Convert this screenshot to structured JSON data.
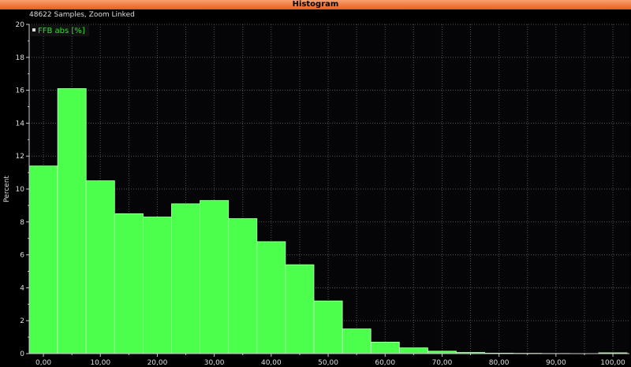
{
  "window": {
    "title": "Histogram"
  },
  "subtitle": "48622 Samples, Zoom Linked",
  "chart_data": {
    "type": "bar",
    "title": "",
    "xlabel": "",
    "ylabel": "Percent",
    "legend": {
      "entries": [
        "FFB abs [%]"
      ],
      "placement": "top-left"
    },
    "bin_width": 5,
    "x": [
      0,
      5,
      10,
      15,
      20,
      25,
      30,
      35,
      40,
      45,
      50,
      55,
      60,
      65,
      70,
      75,
      80,
      85,
      90,
      95,
      100
    ],
    "values": [
      11.4,
      16.1,
      10.5,
      8.5,
      8.3,
      9.1,
      9.3,
      8.2,
      6.8,
      5.4,
      3.2,
      1.5,
      0.7,
      0.35,
      0.15,
      0.07,
      0.03,
      0.02,
      0.01,
      0,
      0.05
    ],
    "xlim": [
      -2.5,
      102.9
    ],
    "ylim": [
      0,
      20
    ],
    "xticks": [
      "0,00",
      "10,00",
      "20,00",
      "30,00",
      "40,00",
      "50,00",
      "60,00",
      "70,00",
      "80,00",
      "90,00",
      "100,00"
    ],
    "yticks": [
      "0",
      "2",
      "4",
      "6",
      "8",
      "10",
      "12",
      "14",
      "16",
      "18",
      "20"
    ],
    "grid": true,
    "colors": {
      "bar": "#4dff4d",
      "background": "#050508",
      "grid": "#555",
      "legend_text": "#33dd33"
    }
  }
}
